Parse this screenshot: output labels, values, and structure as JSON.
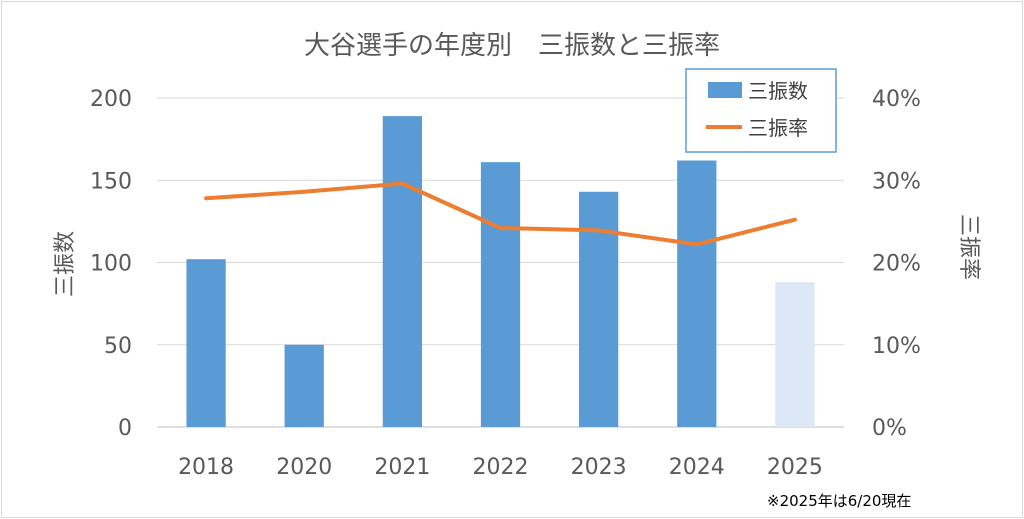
{
  "chart_data": {
    "type": "bar+line",
    "title": "大谷選手の年度別　三振数と三振率",
    "categories": [
      "2018",
      "2020",
      "2021",
      "2022",
      "2023",
      "2024",
      "2025"
    ],
    "series": [
      {
        "name": "三振数",
        "type": "bar",
        "axis": "left",
        "values": [
          102,
          50,
          189,
          161,
          143,
          162,
          88
        ],
        "color": "#5b9bd5",
        "highlight_color": "#dce8f5",
        "highlight_categories": [
          "2025"
        ]
      },
      {
        "name": "三振率",
        "type": "line",
        "axis": "right",
        "values": [
          0.278,
          0.286,
          0.296,
          0.242,
          0.239,
          0.222,
          0.252
        ],
        "color": "#ed7d31"
      }
    ],
    "ylabel": "三振数",
    "y2label": "三振率",
    "ylim": [
      0,
      200
    ],
    "y2lim": [
      0,
      0.4
    ],
    "yticks": [
      "0",
      "50",
      "100",
      "150",
      "200"
    ],
    "y2ticks": [
      "0%",
      "10%",
      "20%",
      "30%",
      "40%"
    ],
    "grid": true,
    "legend": "top-right",
    "note": "※2025年は6/20現在"
  }
}
